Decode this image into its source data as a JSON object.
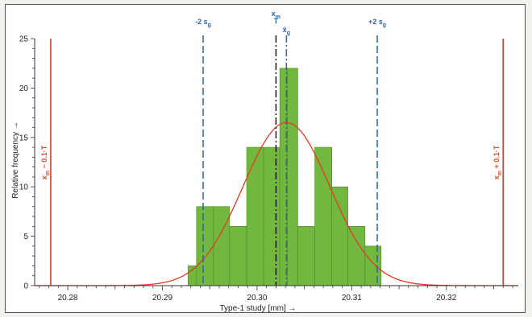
{
  "chart_data": {
    "type": "bar",
    "title": "",
    "xlabel": "Type-1 study [mm] →",
    "ylabel": "Relative frequency →",
    "xlim": [
      20.2765,
      20.3276
    ],
    "ylim": [
      0,
      25
    ],
    "x_ticks": [
      20.28,
      20.29,
      20.3,
      20.31,
      20.32
    ],
    "x_tick_labels": [
      "20.28",
      "20.29",
      "20.30",
      "20.31",
      "20.32"
    ],
    "y_ticks": [
      0,
      5,
      10,
      15,
      20,
      25
    ],
    "y_tick_labels": [
      "0",
      "5",
      "10",
      "15",
      "20",
      "25"
    ],
    "grid": false,
    "bars": [
      {
        "x0": 20.2927,
        "x1": 20.2936,
        "value": 2
      },
      {
        "x0": 20.2936,
        "x1": 20.2954,
        "value": 8
      },
      {
        "x0": 20.2954,
        "x1": 20.2971,
        "value": 8
      },
      {
        "x0": 20.2971,
        "x1": 20.2989,
        "value": 6
      },
      {
        "x0": 20.2989,
        "x1": 20.3007,
        "value": 14
      },
      {
        "x0": 20.3007,
        "x1": 20.3024,
        "value": 14
      },
      {
        "x0": 20.3024,
        "x1": 20.3032,
        "value": 22
      },
      {
        "x0": 20.3032,
        "x1": 20.3043,
        "value": 22
      },
      {
        "x0": 20.3043,
        "x1": 20.3061,
        "value": 6
      },
      {
        "x0": 20.3061,
        "x1": 20.3079,
        "value": 14
      },
      {
        "x0": 20.3079,
        "x1": 20.3096,
        "value": 10
      },
      {
        "x0": 20.3096,
        "x1": 20.3114,
        "value": 6
      },
      {
        "x0": 20.3114,
        "x1": 20.3131,
        "value": 4
      }
    ],
    "bar_color": "#72b83e",
    "curve": {
      "name": "normal distribution",
      "mean": 20.3031,
      "sigma": 0.0046,
      "peak": 16.5,
      "color": "#e23a26"
    },
    "reference_lines": [
      {
        "x": 20.2943,
        "style": "dashed",
        "color": "#2f63a8",
        "label": "-2 s",
        "sub": "g"
      },
      {
        "x": 20.302,
        "style": "dashdot",
        "color": "#1a1a1a",
        "label": "x",
        "sub": "m",
        "label2": "T"
      },
      {
        "x": 20.3031,
        "style": "dashdot",
        "color": "#2f63a8",
        "label": "x̄",
        "sub": "g"
      },
      {
        "x": 20.3127,
        "style": "dashed",
        "color": "#2f63a8",
        "label": "+2 s",
        "sub": "g"
      }
    ],
    "limit_lines": [
      {
        "x": 20.2782,
        "color": "#e23a26",
        "label": "x",
        "sub": "m",
        "suffix": " − 0.1·T"
      },
      {
        "x": 20.326,
        "color": "#e23a26",
        "label": "x",
        "sub": "m",
        "suffix": " + 0.1·T"
      }
    ]
  }
}
